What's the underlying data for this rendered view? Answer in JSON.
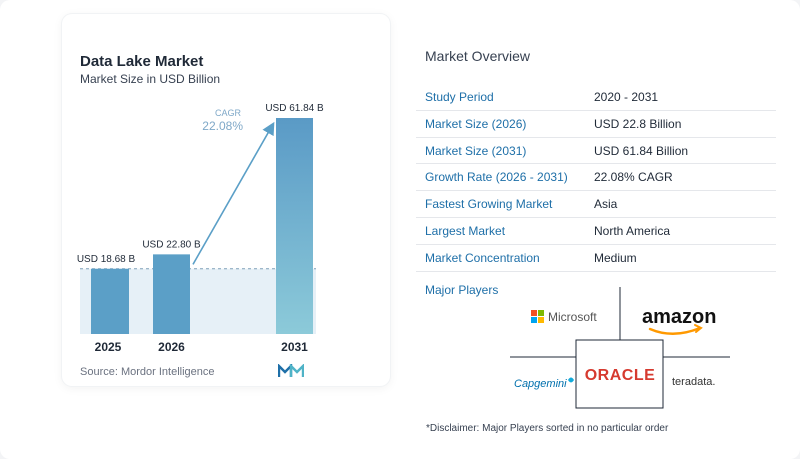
{
  "chart_data": {
    "type": "bar",
    "title": "Data Lake Market",
    "subtitle": "Market Size in USD Billion",
    "categories": [
      "2025",
      "2026",
      "2031"
    ],
    "values": [
      18.68,
      22.8,
      61.84
    ],
    "value_labels": [
      "USD 18.68 B",
      "USD 22.80 B",
      "USD 61.84 B"
    ],
    "cagr_label": "CAGR",
    "cagr_value": "22.08%",
    "source": "Source:  Mordor Intelligence",
    "colors": {
      "bar": "#5b9fc7",
      "bar_last_top": "#5a9ac6",
      "bar_last_bottom": "#8ccad9",
      "band": "#e6f0f7",
      "arrow": "#5b9fc7",
      "cagr_text": "#7fa8c8"
    }
  },
  "overview": {
    "title": "Market Overview",
    "rows": [
      {
        "label": "Study Period",
        "value": "2020 - 2031"
      },
      {
        "label": "Market Size (2026)",
        "value": "USD 22.8 Billion"
      },
      {
        "label": "Market Size (2031)",
        "value": "USD 61.84 Billion"
      },
      {
        "label": "Growth Rate (2026 - 2031)",
        "value": "22.08% CAGR"
      },
      {
        "label": "Fastest Growing Market",
        "value": "Asia"
      },
      {
        "label": "Largest Market",
        "value": "North America"
      },
      {
        "label": "Market Concentration",
        "value": "Medium"
      }
    ]
  },
  "players": {
    "title": "Major Players",
    "logos": [
      "Microsoft",
      "amazon",
      "Capgemini",
      "ORACLE",
      "teradata."
    ]
  },
  "disclaimer": "*Disclaimer: Major Players sorted in no particular order",
  "brand_icon": "mordor-intelligence-logo-icon"
}
